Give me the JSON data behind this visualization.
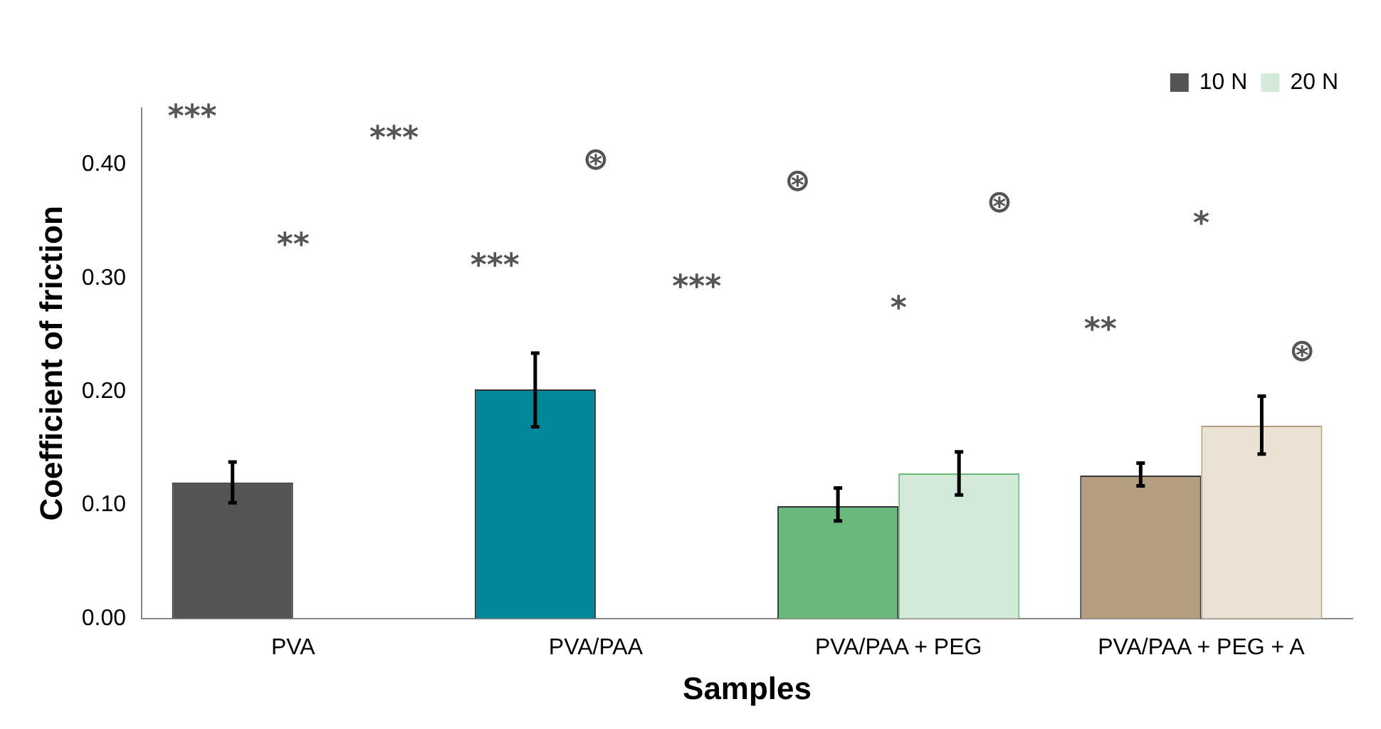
{
  "chart_data": {
    "type": "bar",
    "xlabel": "Samples",
    "ylabel": "Coefficient of friction",
    "categories": [
      "PVA",
      "PVA/PAA",
      "PVA/PAA + PEG",
      "PVA/PAA + PEG + A"
    ],
    "series": [
      {
        "name": "10 N",
        "colors": [
          "#545454",
          "#00879a",
          "#6ab87c",
          "#b39e80"
        ],
        "values": [
          0.12,
          0.202,
          0.099,
          0.126
        ],
        "errors": [
          [
            0.102,
            0.138
          ],
          [
            0.169,
            0.234
          ],
          [
            0.086,
            0.115
          ],
          [
            0.117,
            0.137
          ]
        ]
      },
      {
        "name": "20 N",
        "colors": [
          null,
          null,
          "#d3ead8",
          "#ebe2d4"
        ],
        "values": [
          null,
          null,
          0.128,
          0.17
        ],
        "errors": [
          null,
          null,
          [
            0.109,
            0.147
          ],
          [
            0.145,
            0.196
          ]
        ]
      }
    ],
    "ylim": [
      0,
      0.45
    ],
    "yticks": [
      {
        "value": 0,
        "label": "0.00"
      },
      {
        "value": 0.1,
        "label": "0.10"
      },
      {
        "value": 0.2,
        "label": "0.20"
      },
      {
        "value": 0.3,
        "label": "0.30"
      },
      {
        "value": 0.4,
        "label": "0.40"
      }
    ],
    "grid": false,
    "legend": "top right",
    "annotations": [
      "***",
      "**",
      "***",
      "***",
      "⊛",
      "***",
      "⊛",
      "*",
      "⊛",
      "**",
      "*",
      "⊛"
    ]
  }
}
